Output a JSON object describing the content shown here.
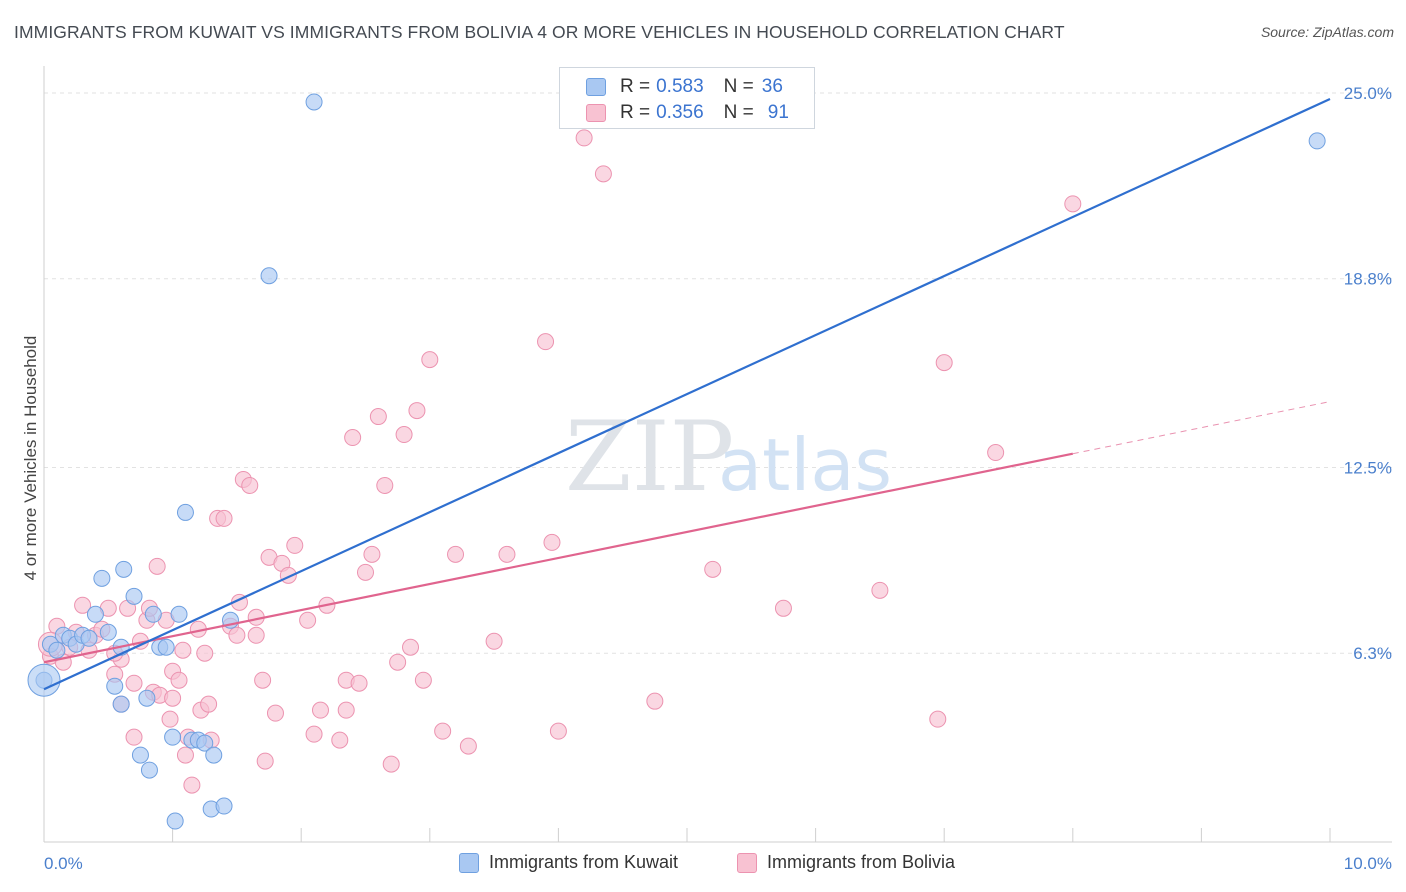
{
  "title": "IMMIGRANTS FROM KUWAIT VS IMMIGRANTS FROM BOLIVIA 4 OR MORE VEHICLES IN HOUSEHOLD CORRELATION CHART",
  "source": "Source: ZipAtlas.com",
  "watermark": {
    "zip": "ZIP",
    "atlas": "atlas"
  },
  "legend_top": [
    {
      "r_label": "R =",
      "r_value": "0.583",
      "n_label": "N =",
      "n_value": "36"
    },
    {
      "r_label": "R =",
      "r_value": "0.356",
      "n_label": "N =",
      "n_value": "91"
    }
  ],
  "colors": {
    "kuwait_fill": "#a9c8f2",
    "kuwait_stroke": "#6fa0e0",
    "kuwait_line": "#2f6fcf",
    "bolivia_fill": "#f8c2d2",
    "bolivia_stroke": "#ec93b0",
    "bolivia_line": "#e0648e",
    "tick_text": "#4a7fcc",
    "grid": "#e2e2e2"
  },
  "chart_data": {
    "type": "scatter",
    "title": "IMMIGRANTS FROM KUWAIT VS IMMIGRANTS FROM BOLIVIA 4 OR MORE VEHICLES IN HOUSEHOLD CORRELATION CHART",
    "xlabel": "",
    "ylabel": "4 or more Vehicles in Household",
    "xlim": [
      0,
      10
    ],
    "ylim": [
      0,
      25.5
    ],
    "x_tick_labels": [
      "0.0%",
      "10.0%"
    ],
    "y_ticks": [
      {
        "value": 6.3,
        "label": "6.3%"
      },
      {
        "value": 12.5,
        "label": "12.5%"
      },
      {
        "value": 18.8,
        "label": "18.8%"
      },
      {
        "value": 25.0,
        "label": "25.0%"
      }
    ],
    "legend_position": "bottom",
    "series": [
      {
        "name": "Immigrants from Kuwait",
        "trend": {
          "x0": 0.0,
          "y0": 5.1,
          "x1": 10.0,
          "y1": 24.8,
          "solid_until": 10.0
        },
        "points": [
          [
            0.0,
            5.4
          ],
          [
            0.05,
            6.6
          ],
          [
            0.1,
            6.4
          ],
          [
            0.15,
            6.9
          ],
          [
            0.2,
            6.8
          ],
          [
            0.25,
            6.6
          ],
          [
            0.3,
            6.9
          ],
          [
            0.35,
            6.8
          ],
          [
            0.4,
            7.6
          ],
          [
            0.45,
            8.8
          ],
          [
            0.5,
            7.0
          ],
          [
            0.55,
            5.2
          ],
          [
            0.6,
            6.5
          ],
          [
            0.6,
            4.6
          ],
          [
            0.62,
            9.1
          ],
          [
            0.7,
            8.2
          ],
          [
            0.75,
            2.9
          ],
          [
            0.8,
            4.8
          ],
          [
            0.82,
            2.4
          ],
          [
            0.85,
            7.6
          ],
          [
            0.9,
            6.5
          ],
          [
            0.95,
            6.5
          ],
          [
            1.0,
            3.5
          ],
          [
            1.02,
            0.7
          ],
          [
            1.05,
            7.6
          ],
          [
            1.1,
            11.0
          ],
          [
            1.15,
            3.4
          ],
          [
            1.2,
            3.4
          ],
          [
            1.25,
            3.3
          ],
          [
            1.3,
            1.1
          ],
          [
            1.32,
            2.9
          ],
          [
            1.4,
            1.2
          ],
          [
            1.45,
            7.4
          ],
          [
            1.75,
            18.9
          ],
          [
            2.1,
            24.7
          ],
          [
            9.9,
            23.4
          ]
        ]
      },
      {
        "name": "Immigrants from Bolivia",
        "trend": {
          "x0": 0.0,
          "y0": 6.0,
          "x1": 10.0,
          "y1": 14.7,
          "solid_until": 8.0
        },
        "points": [
          [
            0.05,
            6.2
          ],
          [
            0.1,
            7.2
          ],
          [
            0.15,
            6.0
          ],
          [
            0.2,
            6.5
          ],
          [
            0.25,
            7.0
          ],
          [
            0.3,
            7.9
          ],
          [
            0.35,
            6.4
          ],
          [
            0.4,
            6.9
          ],
          [
            0.45,
            7.1
          ],
          [
            0.5,
            7.8
          ],
          [
            0.55,
            5.6
          ],
          [
            0.6,
            6.1
          ],
          [
            0.6,
            4.6
          ],
          [
            0.65,
            7.8
          ],
          [
            0.7,
            5.3
          ],
          [
            0.7,
            3.5
          ],
          [
            0.75,
            6.7
          ],
          [
            0.8,
            7.4
          ],
          [
            0.82,
            7.8
          ],
          [
            0.85,
            5.0
          ],
          [
            0.88,
            9.2
          ],
          [
            0.9,
            4.9
          ],
          [
            0.95,
            7.4
          ],
          [
            1.0,
            5.7
          ],
          [
            1.0,
            4.8
          ],
          [
            1.05,
            5.4
          ],
          [
            1.08,
            6.4
          ],
          [
            1.1,
            2.9
          ],
          [
            1.12,
            3.5
          ],
          [
            1.15,
            1.9
          ],
          [
            1.2,
            7.1
          ],
          [
            1.22,
            4.4
          ],
          [
            1.25,
            6.3
          ],
          [
            1.28,
            4.6
          ],
          [
            1.3,
            3.4
          ],
          [
            1.35,
            10.8
          ],
          [
            1.4,
            10.8
          ],
          [
            1.45,
            7.2
          ],
          [
            1.5,
            6.9
          ],
          [
            1.52,
            8.0
          ],
          [
            1.55,
            12.1
          ],
          [
            1.6,
            11.9
          ],
          [
            1.65,
            7.5
          ],
          [
            1.7,
            5.4
          ],
          [
            1.72,
            2.7
          ],
          [
            1.75,
            9.5
          ],
          [
            1.8,
            4.3
          ],
          [
            1.85,
            9.3
          ],
          [
            1.9,
            8.9
          ],
          [
            1.95,
            9.9
          ],
          [
            2.05,
            7.4
          ],
          [
            2.1,
            3.6
          ],
          [
            2.15,
            4.4
          ],
          [
            2.2,
            7.9
          ],
          [
            2.3,
            3.4
          ],
          [
            2.35,
            4.4
          ],
          [
            2.35,
            5.4
          ],
          [
            2.4,
            13.5
          ],
          [
            2.45,
            5.3
          ],
          [
            2.5,
            9.0
          ],
          [
            2.55,
            9.6
          ],
          [
            2.6,
            14.2
          ],
          [
            2.65,
            11.9
          ],
          [
            2.7,
            2.6
          ],
          [
            2.75,
            6.0
          ],
          [
            2.8,
            13.6
          ],
          [
            2.85,
            6.5
          ],
          [
            2.9,
            14.4
          ],
          [
            2.95,
            5.4
          ],
          [
            3.0,
            16.1
          ],
          [
            3.1,
            3.7
          ],
          [
            3.2,
            9.6
          ],
          [
            3.3,
            3.2
          ],
          [
            3.5,
            6.7
          ],
          [
            3.6,
            9.6
          ],
          [
            3.9,
            16.7
          ],
          [
            3.95,
            10.0
          ],
          [
            4.0,
            3.7
          ],
          [
            4.2,
            23.5
          ],
          [
            4.35,
            22.3
          ],
          [
            4.75,
            4.7
          ],
          [
            5.2,
            9.1
          ],
          [
            5.75,
            7.8
          ],
          [
            6.5,
            8.4
          ],
          [
            6.95,
            4.1
          ],
          [
            7.0,
            16.0
          ],
          [
            7.4,
            13.0
          ],
          [
            8.0,
            21.3
          ],
          [
            1.65,
            6.9
          ],
          [
            0.55,
            6.3
          ],
          [
            0.98,
            4.1
          ]
        ]
      }
    ]
  }
}
